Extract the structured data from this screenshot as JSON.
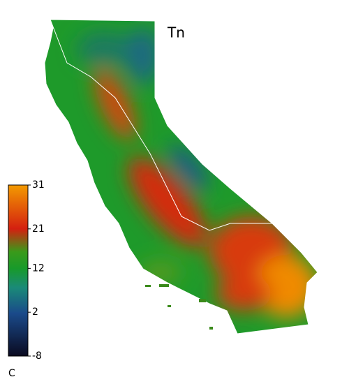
{
  "map": {
    "title": "Tn",
    "colorbar": {
      "label": "C",
      "lim": [
        -8,
        31
      ],
      "ticks": [
        31,
        21,
        12,
        2,
        -8
      ]
    }
  }
}
